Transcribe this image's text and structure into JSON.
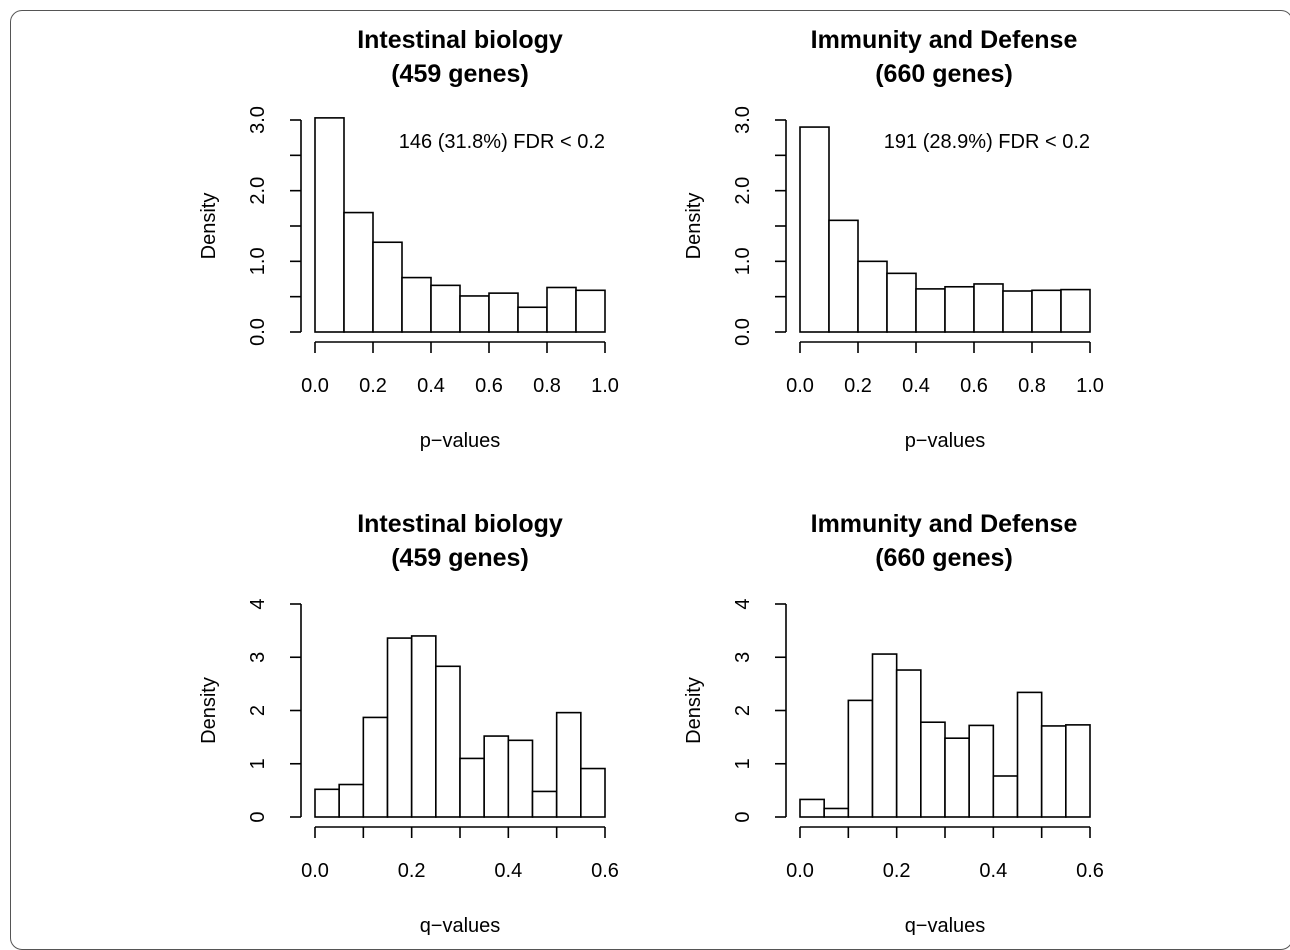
{
  "chart_data": [
    {
      "type": "histogram",
      "title": [
        "Intestinal biology",
        "(459 genes)"
      ],
      "xlabel": "p−values",
      "ylabel": "Density",
      "annotation": "146 (31.8%) FDR < 0.2",
      "bin_edges": [
        0.0,
        0.1,
        0.2,
        0.3,
        0.4,
        0.5,
        0.6,
        0.7,
        0.8,
        0.9,
        1.0
      ],
      "values": [
        3.03,
        1.69,
        1.27,
        0.77,
        0.66,
        0.51,
        0.55,
        0.35,
        0.63,
        0.59
      ],
      "xlim": [
        0,
        1
      ],
      "ylim": [
        0,
        3
      ],
      "xticks": [
        0.0,
        0.2,
        0.4,
        0.6,
        0.8,
        1.0
      ],
      "xtick_labels": [
        "0.0",
        "0.2",
        "0.4",
        "0.6",
        "0.8",
        "1.0"
      ],
      "yticks": [
        0.0,
        1.0,
        2.0,
        3.0
      ],
      "ytick_labels": [
        "0.0",
        "1.0",
        "2.0",
        "3.0"
      ],
      "yminor": [
        0.5,
        1.5,
        2.5
      ]
    },
    {
      "type": "histogram",
      "title": [
        "Immunity and Defense",
        "(660 genes)"
      ],
      "xlabel": "p−values",
      "ylabel": "Density",
      "annotation": "191 (28.9%) FDR < 0.2",
      "bin_edges": [
        0.0,
        0.1,
        0.2,
        0.3,
        0.4,
        0.5,
        0.6,
        0.7,
        0.8,
        0.9,
        1.0
      ],
      "values": [
        2.9,
        1.58,
        1.0,
        0.83,
        0.61,
        0.64,
        0.68,
        0.58,
        0.59,
        0.6
      ],
      "xlim": [
        0,
        1
      ],
      "ylim": [
        0,
        3
      ],
      "xticks": [
        0.0,
        0.2,
        0.4,
        0.6,
        0.8,
        1.0
      ],
      "xtick_labels": [
        "0.0",
        "0.2",
        "0.4",
        "0.6",
        "0.8",
        "1.0"
      ],
      "yticks": [
        0.0,
        1.0,
        2.0,
        3.0
      ],
      "ytick_labels": [
        "0.0",
        "1.0",
        "2.0",
        "3.0"
      ],
      "yminor": [
        0.5,
        1.5,
        2.5
      ]
    },
    {
      "type": "histogram",
      "title": [
        "Intestinal biology",
        "(459 genes)"
      ],
      "xlabel": "q−values",
      "ylabel": "Density",
      "annotation": "",
      "bin_edges": [
        0.0,
        0.05,
        0.1,
        0.15,
        0.2,
        0.25,
        0.3,
        0.35,
        0.4,
        0.45,
        0.5,
        0.55,
        0.6
      ],
      "values": [
        0.52,
        0.61,
        1.87,
        3.36,
        3.4,
        2.83,
        1.1,
        1.52,
        1.44,
        0.48,
        1.96,
        0.91
      ],
      "xlim": [
        0,
        0.6
      ],
      "ylim": [
        0,
        4
      ],
      "xticks": [
        0.0,
        0.2,
        0.4,
        0.6
      ],
      "xtick_labels": [
        "0.0",
        "0.2",
        "0.4",
        "0.6"
      ],
      "xminor": [
        0.1,
        0.3,
        0.5
      ],
      "yticks": [
        0,
        1,
        2,
        3,
        4
      ],
      "ytick_labels": [
        "0",
        "1",
        "2",
        "3",
        "4"
      ]
    },
    {
      "type": "histogram",
      "title": [
        "Immunity and Defense",
        "(660 genes)"
      ],
      "xlabel": "q−values",
      "ylabel": "Density",
      "annotation": "",
      "bin_edges": [
        0.0,
        0.05,
        0.1,
        0.15,
        0.2,
        0.25,
        0.3,
        0.35,
        0.4,
        0.45,
        0.5,
        0.55,
        0.6
      ],
      "values": [
        0.33,
        0.16,
        2.19,
        3.06,
        2.76,
        1.78,
        1.48,
        1.72,
        0.77,
        2.34,
        1.71,
        1.73
      ],
      "xlim": [
        0,
        0.6
      ],
      "ylim": [
        0,
        4
      ],
      "xticks": [
        0.0,
        0.2,
        0.4,
        0.6
      ],
      "xtick_labels": [
        "0.0",
        "0.2",
        "0.4",
        "0.6"
      ],
      "xminor": [
        0.1,
        0.3,
        0.5
      ],
      "yticks": [
        0,
        1,
        2,
        3,
        4
      ],
      "ytick_labels": [
        "0",
        "1",
        "2",
        "3",
        "4"
      ]
    }
  ]
}
